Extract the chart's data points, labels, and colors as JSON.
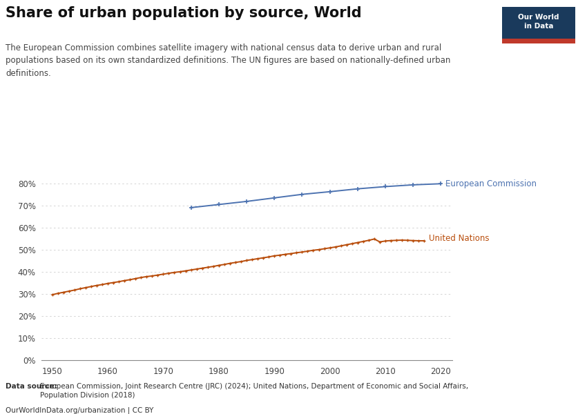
{
  "title": "Share of urban population by source, World",
  "subtitle": "The European Commission combines satellite imagery with national census data to derive urban and rural\npopulations based on its own standardized definitions. The UN figures are based on nationally-defined urban\ndefinitions.",
  "background_color": "#ffffff",
  "un_color": "#b84c0a",
  "ec_color": "#4c72b0",
  "un_label": "United Nations",
  "ec_label": "European Commission",
  "un_data": {
    "years": [
      1950,
      1951,
      1952,
      1953,
      1954,
      1955,
      1956,
      1957,
      1958,
      1959,
      1960,
      1961,
      1962,
      1963,
      1964,
      1965,
      1966,
      1967,
      1968,
      1969,
      1970,
      1971,
      1972,
      1973,
      1974,
      1975,
      1976,
      1977,
      1978,
      1979,
      1980,
      1981,
      1982,
      1983,
      1984,
      1985,
      1986,
      1987,
      1988,
      1989,
      1990,
      1991,
      1992,
      1993,
      1994,
      1995,
      1996,
      1997,
      1998,
      1999,
      2000,
      2001,
      2002,
      2003,
      2004,
      2005,
      2006,
      2007,
      2008,
      2009,
      2010,
      2011,
      2012,
      2013,
      2014,
      2015,
      2016,
      2017
    ],
    "values": [
      29.6,
      30.2,
      30.7,
      31.2,
      31.7,
      32.3,
      32.8,
      33.3,
      33.8,
      34.2,
      34.7,
      35.1,
      35.5,
      36.0,
      36.4,
      36.9,
      37.4,
      37.8,
      38.1,
      38.5,
      38.9,
      39.3,
      39.7,
      40.0,
      40.4,
      40.8,
      41.2,
      41.6,
      42.0,
      42.4,
      42.9,
      43.3,
      43.8,
      44.2,
      44.6,
      45.1,
      45.5,
      45.9,
      46.3,
      46.7,
      47.2,
      47.5,
      47.9,
      48.2,
      48.6,
      48.9,
      49.3,
      49.7,
      50.0,
      50.4,
      50.8,
      51.2,
      51.7,
      52.2,
      52.7,
      53.2,
      53.7,
      54.2,
      54.8,
      53.5,
      53.9,
      54.1,
      54.2,
      54.3,
      54.2,
      54.1,
      54.0,
      54.0
    ]
  },
  "ec_data": {
    "years": [
      1975,
      1980,
      1985,
      1990,
      1995,
      2000,
      2005,
      2010,
      2015,
      2020
    ],
    "values": [
      69.0,
      70.4,
      71.8,
      73.4,
      75.0,
      76.2,
      77.5,
      78.5,
      79.3,
      79.8
    ]
  },
  "ylim_pct": [
    0,
    88
  ],
  "yticks_pct": [
    0,
    10,
    20,
    30,
    40,
    50,
    60,
    70,
    80
  ],
  "xlim": [
    1948,
    2022
  ],
  "xticks": [
    1950,
    1960,
    1970,
    1980,
    1990,
    2000,
    2010,
    2020
  ],
  "footer_source_bold": "Data source: ",
  "footer_source_rest": "European Commission, Joint Research Centre (JRC) (2024); United Nations, Department of Economic and Social Affairs,\nPopulation Division (2018)",
  "footer_url": "OurWorldInData.org/urbanization | CC BY",
  "owid_box_color": "#1a3a5c",
  "owid_red": "#c0392b",
  "owid_text": "Our World\nin Data",
  "grid_color": "#cccccc",
  "grid_style": "--",
  "spine_color": "#888888"
}
